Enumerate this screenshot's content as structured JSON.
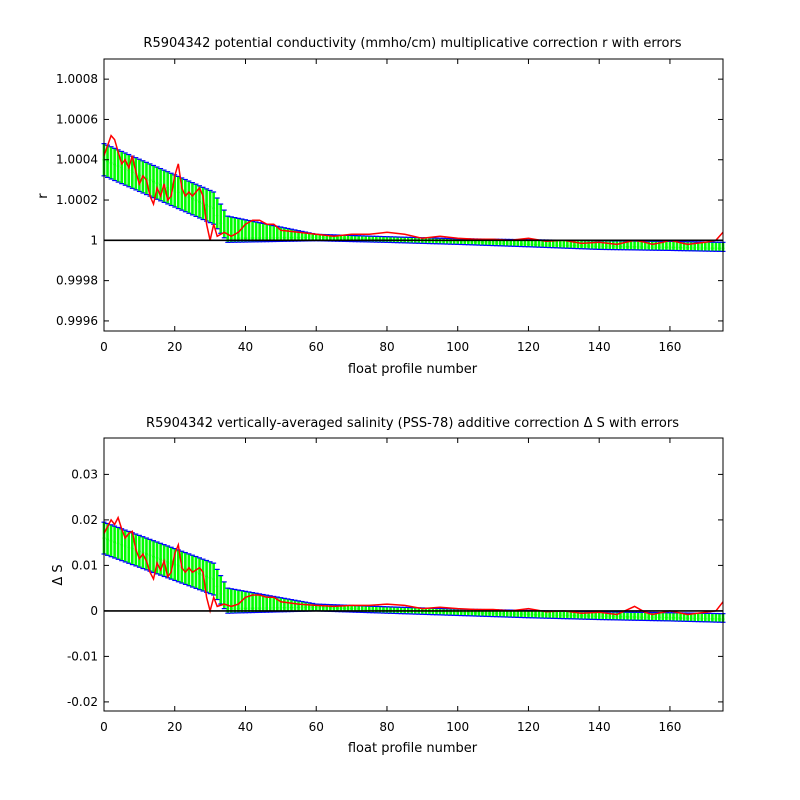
{
  "chart_data": [
    {
      "type": "line",
      "title": "R5904342 potential conductivity (mmho/cm) multiplicative correction r with errors",
      "xlabel": "float profile number",
      "ylabel": "r",
      "xlim": [
        0,
        175
      ],
      "ylim": [
        0.99955,
        1.0009
      ],
      "xticks": [
        0,
        20,
        40,
        60,
        80,
        100,
        120,
        140,
        160
      ],
      "yticks": [
        0.9996,
        0.9998,
        1,
        1.0002,
        1.0004,
        1.0006,
        1.0008
      ],
      "ytick_labels": [
        "0.9996",
        "0.9998",
        "1",
        "1.0002",
        "1.0004",
        "1.0006",
        "1.0008"
      ],
      "reference_line": 1,
      "grid": false,
      "series": [
        {
          "role": "fit",
          "color": "#00ff00",
          "x": [
            0,
            31,
            35,
            60,
            80,
            100,
            120,
            140,
            160,
            175
          ],
          "values": [
            1.0004,
            1.00016,
            1.00001,
            1.000015,
            1.000005,
            0.999995,
            0.99998,
            0.99997,
            0.999965,
            0.99996
          ]
        },
        {
          "role": "error_upper",
          "color": "#0000ff",
          "x": [
            0,
            31,
            35,
            60,
            80,
            100,
            120,
            140,
            160,
            175
          ],
          "values": [
            1.00048,
            1.00024,
            1.00012,
            1.00003,
            1.000018,
            1.000008,
            1.000003,
            0.999998,
            0.999995,
            0.99999
          ]
        },
        {
          "role": "error_lower",
          "color": "#0000ff",
          "x": [
            0,
            31,
            35,
            60,
            80,
            100,
            120,
            140,
            160,
            175
          ],
          "values": [
            1.00032,
            1.00008,
            0.99999,
            0.999998,
            0.99999,
            0.99998,
            0.999968,
            0.999955,
            0.99995,
            0.999945
          ]
        },
        {
          "role": "profile_estimates",
          "color": "#ff0000",
          "x": [
            0,
            2,
            3,
            4,
            5,
            6,
            7,
            8,
            9,
            10,
            11,
            12,
            13,
            14,
            15,
            16,
            17,
            18,
            19,
            20,
            21,
            22,
            23,
            24,
            25,
            26,
            27,
            28,
            29,
            30,
            31,
            32,
            34,
            36,
            38,
            40,
            42,
            44,
            46,
            48,
            50,
            55,
            60,
            65,
            70,
            75,
            80,
            85,
            90,
            95,
            100,
            105,
            110,
            115,
            120,
            125,
            130,
            135,
            140,
            145,
            150,
            153,
            155,
            158,
            160,
            165,
            170,
            173,
            175
          ],
          "values": [
            1.00042,
            1.00052,
            1.0005,
            1.00044,
            1.00038,
            1.0004,
            1.00036,
            1.00042,
            1.00034,
            1.00028,
            1.00032,
            1.0003,
            1.00022,
            1.00018,
            1.00026,
            1.00022,
            1.00028,
            1.0002,
            1.00022,
            1.00032,
            1.00038,
            1.00026,
            1.00022,
            1.00024,
            1.00022,
            1.00024,
            1.00026,
            1.00022,
            1.00008,
            1.0,
            1.00008,
            1.00002,
            1.00004,
            1.00002,
            1.00004,
            1.00008,
            1.0001,
            1.0001,
            1.00008,
            1.00008,
            1.00005,
            1.00004,
            1.00003,
            1.00002,
            1.00003,
            1.00003,
            1.00004,
            1.00003,
            1.00001,
            1.00002,
            1.00001,
            1.000005,
            1.000005,
            1.0,
            1.00001,
            0.999995,
            1.0,
            0.999985,
            0.99999,
            0.99998,
            1.0,
            0.99999,
            0.99998,
            0.99999,
            1.0,
            0.99998,
            0.99999,
            1.0,
            1.00004
          ]
        }
      ]
    },
    {
      "type": "line",
      "title": "R5904342 vertically-averaged salinity (PSS-78) additive correction Δ S with errors",
      "xlabel": "float profile number",
      "ylabel": "Δ S",
      "xlim": [
        0,
        175
      ],
      "ylim": [
        -0.022,
        0.038
      ],
      "xticks": [
        0,
        20,
        40,
        60,
        80,
        100,
        120,
        140,
        160
      ],
      "yticks": [
        -0.02,
        -0.01,
        0,
        0.01,
        0.02,
        0.03
      ],
      "ytick_labels": [
        "-0.02",
        "-0.01",
        "0",
        "0.01",
        "0.02",
        "0.03"
      ],
      "reference_line": 0,
      "grid": false,
      "series": [
        {
          "role": "fit",
          "color": "#00ff00",
          "x": [
            0,
            31,
            35,
            60,
            80,
            100,
            120,
            140,
            160,
            175
          ],
          "values": [
            0.016,
            0.007,
            0.0005,
            0.0008,
            0.0002,
            -0.0003,
            -0.0008,
            -0.0012,
            -0.0015,
            -0.0018
          ]
        },
        {
          "role": "error_upper",
          "color": "#0000ff",
          "x": [
            0,
            31,
            35,
            60,
            80,
            100,
            120,
            140,
            160,
            175
          ],
          "values": [
            0.0195,
            0.0105,
            0.005,
            0.0015,
            0.0009,
            0.0004,
            0.0001,
            -0.0002,
            -0.0004,
            -0.0006
          ]
        },
        {
          "role": "error_lower",
          "color": "#0000ff",
          "x": [
            0,
            31,
            35,
            60,
            80,
            100,
            120,
            140,
            160,
            175
          ],
          "values": [
            0.0125,
            0.0035,
            -0.0005,
            0.0,
            -0.0005,
            -0.001,
            -0.0015,
            -0.0019,
            -0.0022,
            -0.0025
          ]
        },
        {
          "role": "profile_estimates",
          "color": "#ff0000",
          "x": [
            0,
            2,
            3,
            4,
            5,
            6,
            7,
            8,
            9,
            10,
            11,
            12,
            13,
            14,
            15,
            16,
            17,
            18,
            19,
            20,
            21,
            22,
            23,
            24,
            25,
            26,
            27,
            28,
            29,
            30,
            31,
            32,
            34,
            36,
            38,
            40,
            42,
            44,
            46,
            48,
            50,
            55,
            60,
            65,
            70,
            75,
            80,
            85,
            90,
            95,
            100,
            105,
            110,
            115,
            120,
            125,
            130,
            135,
            140,
            145,
            150,
            153,
            155,
            158,
            160,
            165,
            170,
            173,
            175
          ],
          "values": [
            0.017,
            0.02,
            0.019,
            0.0205,
            0.018,
            0.016,
            0.017,
            0.0175,
            0.0135,
            0.0115,
            0.0125,
            0.011,
            0.0085,
            0.007,
            0.0105,
            0.009,
            0.011,
            0.0075,
            0.0085,
            0.0125,
            0.0145,
            0.0095,
            0.0085,
            0.0095,
            0.0085,
            0.009,
            0.0095,
            0.0085,
            0.003,
            0.0,
            0.003,
            0.001,
            0.0015,
            0.001,
            0.0015,
            0.003,
            0.0035,
            0.0035,
            0.003,
            0.003,
            0.002,
            0.0015,
            0.0012,
            0.001,
            0.0012,
            0.0012,
            0.0015,
            0.0012,
            0.0005,
            0.0008,
            0.0005,
            0.0003,
            0.0003,
            0.0,
            0.0005,
            -0.0002,
            0.0,
            -0.0005,
            -0.0003,
            -0.0008,
            0.001,
            -0.0003,
            -0.0008,
            -0.0003,
            0.0,
            -0.0008,
            -0.0003,
            0.0,
            0.002
          ]
        }
      ]
    }
  ]
}
